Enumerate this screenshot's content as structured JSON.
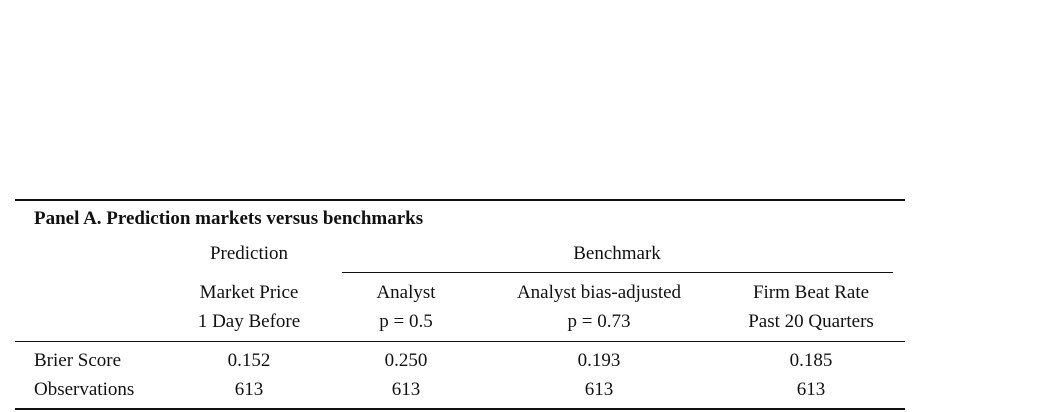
{
  "table": {
    "title": "Panel A. Prediction markets versus benchmarks",
    "groups": [
      "Prediction",
      "Benchmark"
    ],
    "columns": [
      [
        "Market Price",
        "1 Day Before"
      ],
      [
        "Analyst",
        "p = 0.5"
      ],
      [
        "Analyst bias-adjusted",
        "p = 0.73"
      ],
      [
        "Firm Beat Rate",
        "Past 20 Quarters"
      ]
    ],
    "rows": [
      [
        "Brier Score",
        "0.152",
        "0.250",
        "0.193",
        "0.185"
      ],
      [
        "Observations",
        "613",
        "613",
        "613",
        "613"
      ]
    ]
  }
}
